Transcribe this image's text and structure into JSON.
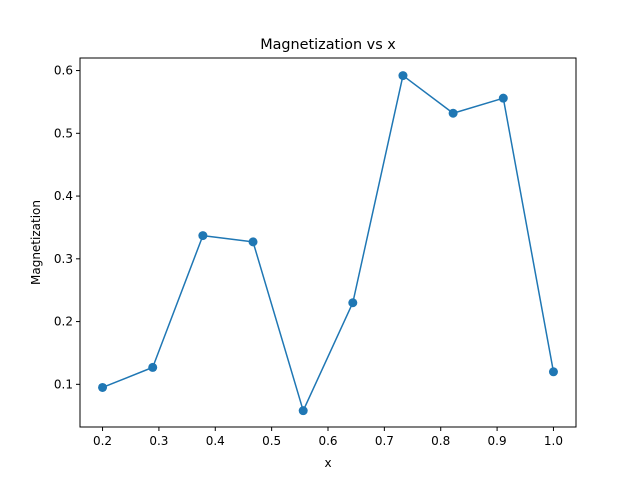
{
  "chart_data": {
    "type": "line",
    "title": "Magnetization vs x",
    "xlabel": "x",
    "ylabel": "Magnetization",
    "xlim": [
      0.16,
      1.04
    ],
    "ylim": [
      0.032,
      0.62
    ],
    "xticks": [
      0.2,
      0.3,
      0.4,
      0.5,
      0.6,
      0.7,
      0.8,
      0.9,
      1.0
    ],
    "xtick_labels": [
      "0.2",
      "0.3",
      "0.4",
      "0.5",
      "0.6",
      "0.7",
      "0.8",
      "0.9",
      "1.0"
    ],
    "yticks": [
      0.1,
      0.2,
      0.3,
      0.4,
      0.5,
      0.6
    ],
    "ytick_labels": [
      "0.1",
      "0.2",
      "0.3",
      "0.4",
      "0.5",
      "0.6"
    ],
    "grid": false,
    "legend": "none",
    "series": [
      {
        "color": "#1f77b4",
        "marker": "circle",
        "x": [
          0.2,
          0.289,
          0.378,
          0.467,
          0.556,
          0.644,
          0.733,
          0.822,
          0.911,
          1.0
        ],
        "y": [
          0.095,
          0.127,
          0.337,
          0.327,
          0.058,
          0.23,
          0.592,
          0.532,
          0.556,
          0.12
        ]
      }
    ]
  }
}
